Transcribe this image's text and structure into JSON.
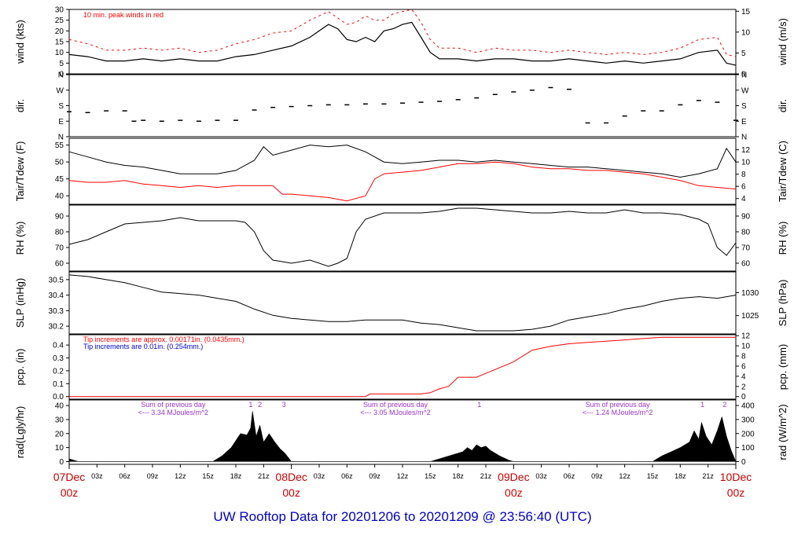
{
  "title": "UW Rooftop Data for 20201206  to  20201209 @ 23:56:40  (UTC)",
  "colors": {
    "title": "#0000cc",
    "date": "#cc0000",
    "peak": "#ff0000",
    "precip": "#ff0000",
    "sum_note": "#9933cc",
    "axis": "#000000"
  },
  "x_axis": {
    "hours_range": [
      0,
      72
    ],
    "minor_ticks": [
      {
        "h": 3,
        "label": "03z"
      },
      {
        "h": 6,
        "label": "06z"
      },
      {
        "h": 9,
        "label": "09z"
      },
      {
        "h": 12,
        "label": "12z"
      },
      {
        "h": 15,
        "label": "15z"
      },
      {
        "h": 18,
        "label": "18z"
      },
      {
        "h": 21,
        "label": "21z"
      },
      {
        "h": 27,
        "label": "03z"
      },
      {
        "h": 30,
        "label": "06z"
      },
      {
        "h": 33,
        "label": "09z"
      },
      {
        "h": 36,
        "label": "12z"
      },
      {
        "h": 39,
        "label": "15z"
      },
      {
        "h": 42,
        "label": "18z"
      },
      {
        "h": 45,
        "label": "21z"
      },
      {
        "h": 51,
        "label": "03z"
      },
      {
        "h": 54,
        "label": "06z"
      },
      {
        "h": 57,
        "label": "09z"
      },
      {
        "h": 60,
        "label": "12z"
      },
      {
        "h": 63,
        "label": "15z"
      },
      {
        "h": 66,
        "label": "18z"
      },
      {
        "h": 69,
        "label": "21z"
      }
    ],
    "date_ticks": [
      {
        "h": 0,
        "date": "07Dec",
        "time": "00z"
      },
      {
        "h": 24,
        "date": "08Dec",
        "time": "00z"
      },
      {
        "h": 48,
        "date": "09Dec",
        "time": "00z"
      },
      {
        "h": 72,
        "date": "10Dec",
        "time": "00z"
      }
    ]
  },
  "chart_data": [
    {
      "type": "line",
      "id": "wind",
      "ylabel": "wind (kts)",
      "ylabel_right": "wind (m/s)",
      "ylim": [
        0,
        30
      ],
      "yticks_left": [
        0,
        5,
        10,
        15,
        20,
        25,
        30
      ],
      "yticks_right": [
        0,
        5,
        10,
        15
      ],
      "right_scale_factor": 0.5144,
      "annotation": "10 min. peak winds in red",
      "series": [
        {
          "values_of": "wind speed",
          "x": [
            0,
            2,
            4,
            6,
            8,
            10,
            12,
            14,
            16,
            18,
            20,
            22,
            24,
            26,
            27,
            28,
            29,
            30,
            31,
            32,
            33,
            34,
            35,
            36,
            37,
            38,
            39,
            40,
            42,
            44,
            46,
            48,
            50,
            52,
            54,
            56,
            58,
            60,
            62,
            64,
            66,
            68,
            70,
            71,
            72
          ],
          "y": [
            9,
            8,
            6,
            6,
            7,
            6,
            7,
            6,
            6,
            8,
            9,
            11,
            13,
            17,
            20,
            23,
            21,
            16,
            15,
            17,
            15,
            20,
            21,
            23,
            24,
            17,
            10,
            7,
            7,
            6,
            7,
            7,
            6,
            6,
            7,
            6,
            5,
            6,
            5,
            6,
            7,
            10,
            11,
            5,
            4
          ]
        },
        {
          "values_of": "10 min peak",
          "x": [
            0,
            2,
            4,
            6,
            8,
            10,
            12,
            14,
            16,
            18,
            20,
            22,
            24,
            26,
            27,
            28,
            29,
            30,
            31,
            32,
            33,
            34,
            35,
            36,
            37,
            38,
            39,
            40,
            42,
            44,
            46,
            48,
            50,
            52,
            54,
            56,
            58,
            60,
            62,
            64,
            66,
            68,
            70,
            71,
            72
          ],
          "y": [
            16,
            14,
            11,
            11,
            12,
            11,
            12,
            10,
            11,
            14,
            16,
            19,
            20,
            25,
            27,
            29,
            26,
            23,
            24,
            27,
            25,
            25,
            28,
            29,
            30,
            24,
            16,
            12,
            12,
            10,
            12,
            11,
            11,
            10,
            11,
            10,
            9,
            10,
            9,
            10,
            12,
            16,
            17,
            9,
            8
          ]
        }
      ]
    },
    {
      "type": "scatter",
      "id": "dir",
      "ylabel": "dir.",
      "ylabel_right": "dir.",
      "ylim": [
        0,
        360
      ],
      "yticks": [
        {
          "v": 0,
          "label": "N"
        },
        {
          "v": 90,
          "label": "E"
        },
        {
          "v": 180,
          "label": "S"
        },
        {
          "v": 270,
          "label": "W"
        },
        {
          "v": 360,
          "label": "N"
        }
      ],
      "x": [
        0,
        2,
        4,
        6,
        7,
        8,
        10,
        12,
        14,
        16,
        18,
        20,
        22,
        24,
        26,
        28,
        30,
        32,
        34,
        36,
        38,
        40,
        42,
        44,
        46,
        48,
        50,
        52,
        54,
        56,
        58,
        60,
        62,
        64,
        66,
        68,
        70,
        72
      ],
      "y": [
        145,
        140,
        150,
        150,
        90,
        95,
        90,
        95,
        90,
        95,
        95,
        155,
        170,
        175,
        180,
        185,
        185,
        190,
        190,
        195,
        200,
        205,
        215,
        225,
        245,
        260,
        270,
        285,
        275,
        80,
        80,
        120,
        150,
        150,
        185,
        210,
        200,
        95
      ]
    },
    {
      "type": "line",
      "id": "temp",
      "ylabel": "Tair/Tdew (F)",
      "ylabel_right": "Tair/Tdew (C)",
      "ylim": [
        37.5,
        57
      ],
      "yticks_left": [
        40,
        45,
        50,
        55
      ],
      "yticks_right": [
        4,
        6,
        8,
        10,
        12
      ],
      "series": [
        {
          "name": "Tair",
          "x": [
            0,
            2,
            4,
            6,
            8,
            10,
            12,
            14,
            16,
            18,
            20,
            21,
            22,
            24,
            26,
            28,
            30,
            32,
            34,
            36,
            38,
            40,
            42,
            44,
            46,
            48,
            50,
            52,
            54,
            56,
            58,
            60,
            62,
            64,
            66,
            68,
            70,
            71,
            72
          ],
          "y": [
            53,
            51.5,
            50,
            49,
            48.5,
            47.5,
            46.5,
            46.5,
            46.5,
            47.5,
            50.5,
            54.5,
            52,
            53.5,
            55,
            54.5,
            55,
            53,
            50,
            49.5,
            50,
            50.5,
            50.5,
            50,
            50.5,
            50,
            49.5,
            49,
            48.5,
            48.5,
            48,
            47.5,
            47,
            46.5,
            45.5,
            46.5,
            48,
            54,
            50
          ]
        },
        {
          "name": "Tdew",
          "x": [
            0,
            2,
            4,
            6,
            8,
            10,
            12,
            14,
            16,
            18,
            20,
            22,
            23,
            24,
            26,
            28,
            30,
            32,
            33,
            34,
            36,
            38,
            40,
            42,
            44,
            46,
            48,
            50,
            52,
            54,
            56,
            58,
            60,
            62,
            64,
            66,
            68,
            70,
            72
          ],
          "y": [
            44.5,
            44,
            44,
            44.5,
            43.5,
            43,
            42.5,
            43,
            42.5,
            43,
            43,
            43,
            40.5,
            40.5,
            40,
            39.5,
            38.5,
            40,
            45,
            46.5,
            47,
            47.5,
            48.5,
            49.5,
            49.5,
            50,
            49.5,
            48.5,
            48,
            48,
            47.5,
            47.5,
            47,
            46.5,
            45.5,
            44.5,
            43,
            42.5,
            42
          ]
        }
      ]
    },
    {
      "type": "line",
      "id": "rh",
      "ylabel": "RH (%)",
      "ylabel_right": "RH (%)",
      "ylim": [
        55,
        97
      ],
      "yticks": [
        60,
        70,
        80,
        90
      ],
      "x": [
        0,
        2,
        4,
        6,
        8,
        10,
        12,
        14,
        16,
        18,
        19,
        20,
        21,
        22,
        24,
        26,
        28,
        29,
        30,
        31,
        32,
        34,
        36,
        38,
        40,
        42,
        44,
        46,
        48,
        50,
        52,
        54,
        56,
        58,
        60,
        62,
        64,
        66,
        68,
        69,
        70,
        71,
        72
      ],
      "y": [
        72,
        75,
        80,
        85,
        86,
        87,
        89,
        87,
        87,
        87,
        86,
        80,
        68,
        62,
        60,
        62,
        58,
        60,
        63,
        80,
        88,
        92,
        92,
        92,
        93,
        95,
        95,
        94,
        93,
        92,
        92,
        93,
        92,
        92,
        94,
        92,
        92,
        91,
        88,
        85,
        70,
        65,
        73
      ]
    },
    {
      "type": "line",
      "id": "slp",
      "ylabel": "SLP (inHg)",
      "ylabel_right": "SLP (hPa)",
      "ylim": [
        30.15,
        30.55
      ],
      "yticks_left": [
        30.2,
        30.3,
        30.4,
        30.5
      ],
      "yticks_right": [
        1025,
        1030
      ],
      "x": [
        0,
        2,
        4,
        6,
        8,
        10,
        12,
        14,
        16,
        18,
        20,
        22,
        24,
        26,
        28,
        30,
        32,
        34,
        36,
        38,
        40,
        42,
        44,
        46,
        48,
        50,
        52,
        54,
        56,
        58,
        60,
        62,
        64,
        66,
        68,
        70,
        72
      ],
      "y": [
        30.53,
        30.52,
        30.5,
        30.48,
        30.45,
        30.42,
        30.41,
        30.4,
        30.38,
        30.36,
        30.31,
        30.27,
        30.25,
        30.24,
        30.23,
        30.23,
        30.24,
        30.24,
        30.24,
        30.22,
        30.21,
        30.19,
        30.17,
        30.17,
        30.17,
        30.18,
        30.2,
        30.24,
        30.26,
        30.28,
        30.31,
        30.33,
        30.36,
        30.38,
        30.39,
        30.38,
        30.4
      ]
    },
    {
      "type": "line",
      "id": "precip",
      "ylabel": "pcp. (in)",
      "ylabel_right": "pcp. (mm)",
      "ylim": [
        -0.02,
        0.48
      ],
      "yticks_left": [
        0.0,
        0.1,
        0.2,
        0.3,
        0.4
      ],
      "yticks_right": [
        0,
        2,
        4,
        6,
        8,
        10,
        12
      ],
      "note_red": "Tip increments are approx. 0.00171in. (0.0435mm.)",
      "note_blue": "Tip increments are 0.01in. (0.254mm.)",
      "x": [
        0,
        32,
        32.5,
        38,
        39,
        40,
        41,
        42,
        44,
        45,
        46,
        47,
        48,
        50,
        52,
        54,
        56,
        58,
        60,
        62,
        64,
        66,
        72
      ],
      "y": [
        0,
        0,
        0.02,
        0.02,
        0.03,
        0.06,
        0.08,
        0.15,
        0.15,
        0.18,
        0.21,
        0.24,
        0.27,
        0.36,
        0.39,
        0.41,
        0.42,
        0.43,
        0.44,
        0.45,
        0.46,
        0.46,
        0.46
      ]
    },
    {
      "type": "area",
      "id": "rad",
      "ylabel": "rad(Lgly/hr)",
      "ylabel_right": "rad (W/m^2)",
      "ylim": [
        -2,
        44
      ],
      "yticks_left": [
        0,
        10,
        20,
        30,
        40
      ],
      "yticks_right": [
        0,
        100,
        200,
        300,
        400
      ],
      "daily_notes": [
        {
          "h": 7.5,
          "line1": "Sum of previous day",
          "line2": "<--- 3.34 MJoules/m^2"
        },
        {
          "h": 31.5,
          "line1": "Sum of previous day",
          "line2": "<--- 3.05 MJoules/m^2"
        },
        {
          "h": 55.5,
          "line1": "Sum of previous day",
          "line2": "<--- 1.24 MJoules/m^2"
        }
      ],
      "markers": [
        {
          "h": 19.6,
          "label": "1"
        },
        {
          "h": 20.6,
          "label": "2"
        },
        {
          "h": 23.2,
          "label": "3"
        },
        {
          "h": 44.3,
          "label": "1"
        },
        {
          "h": 68.4,
          "label": "1"
        },
        {
          "h": 70.8,
          "label": "2"
        }
      ],
      "x": [
        0,
        0.5,
        1,
        15.5,
        16.5,
        17.5,
        18.5,
        19.2,
        19.6,
        19.8,
        20.2,
        20.6,
        21,
        21.6,
        22.2,
        22.8,
        23.3,
        24,
        39,
        40.5,
        41.5,
        42.5,
        43,
        43.5,
        44,
        44.5,
        45,
        45.5,
        46,
        46.5,
        47.5,
        48,
        63,
        64,
        65,
        66,
        67,
        67.5,
        68,
        68.3,
        68.8,
        69.4,
        70,
        70.5,
        71,
        71.5,
        72
      ],
      "y": [
        2,
        1,
        0,
        0,
        4,
        10,
        20,
        19,
        24,
        36,
        18,
        26,
        14,
        20,
        14,
        9,
        6,
        0,
        0,
        3,
        5,
        7,
        10,
        8,
        12,
        10,
        11,
        8,
        6,
        4,
        1,
        0,
        0,
        4,
        7,
        10,
        14,
        22,
        16,
        28,
        18,
        12,
        22,
        32,
        18,
        8,
        0
      ]
    }
  ]
}
